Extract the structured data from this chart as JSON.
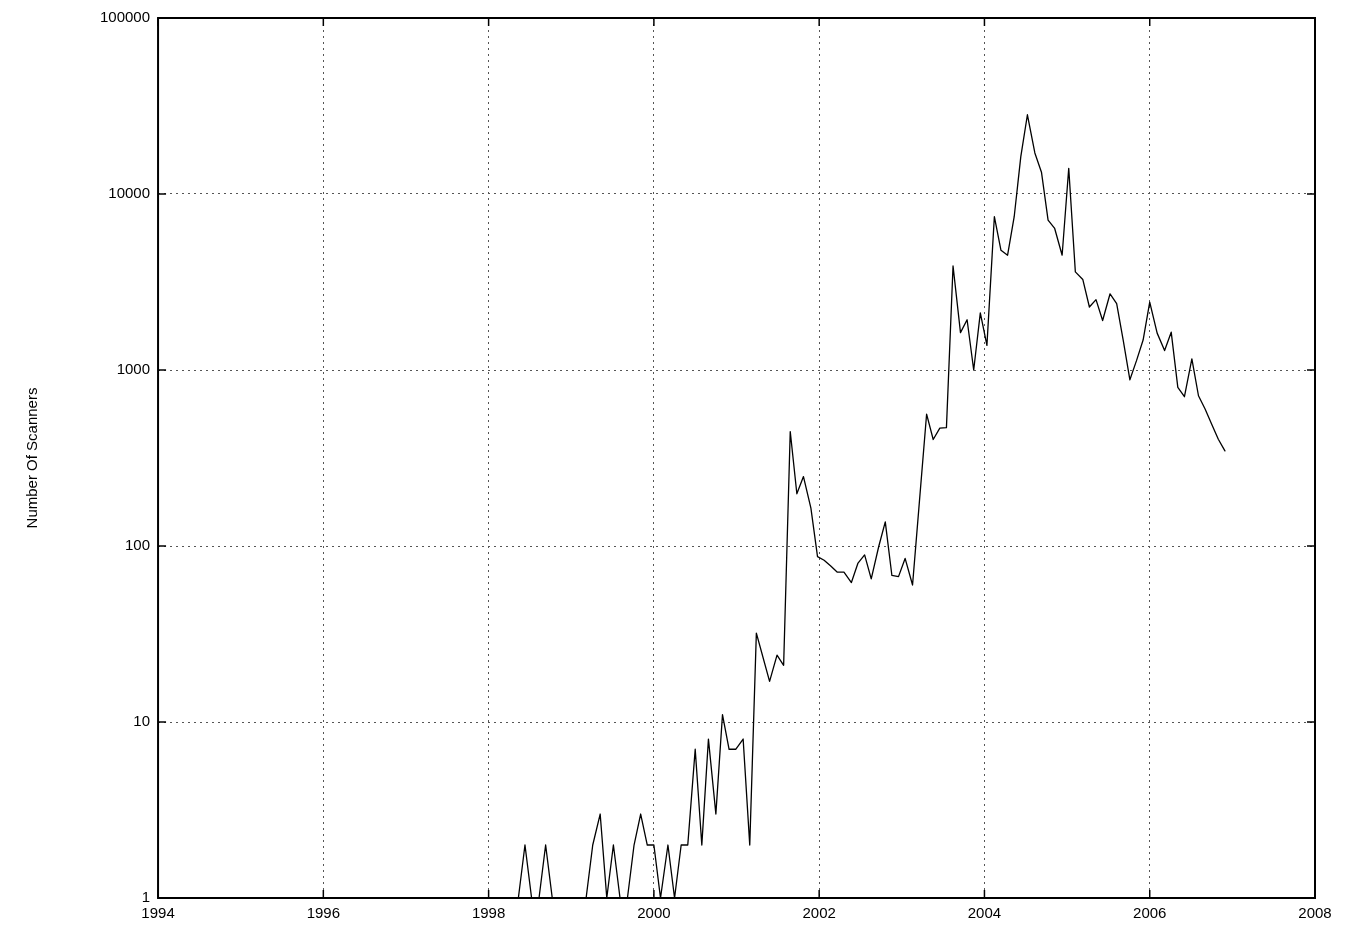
{
  "chart_data": {
    "type": "line",
    "ylabel": "Number Of Scanners",
    "log": "y",
    "grid": true,
    "legend": false,
    "marker": "none",
    "line_style": "solid",
    "xlim": [
      1994,
      2008
    ],
    "xticks": [
      1994,
      1996,
      1998,
      2000,
      2002,
      2004,
      2006,
      2008
    ],
    "ylim": [
      1,
      100000
    ],
    "yticks": [
      1,
      10,
      100,
      1000,
      10000,
      100000
    ],
    "series": [
      {
        "color": "#000000",
        "x": [
          1998.36,
          1998.44,
          1998.52,
          1998.61,
          1998.69,
          1998.77,
          1999.18,
          1999.26,
          1999.35,
          1999.43,
          1999.51,
          1999.59,
          1999.68,
          1999.76,
          1999.84,
          1999.92,
          2000.0,
          2000.08,
          2000.17,
          2000.25,
          2000.33,
          2000.41,
          2000.5,
          2000.58,
          2000.66,
          2000.75,
          2000.83,
          2000.91,
          2000.99,
          2001.08,
          2001.16,
          2001.24,
          2001.4,
          2001.49,
          2001.57,
          2001.65,
          2001.73,
          2001.81,
          2001.9,
          2001.98,
          2002.06,
          2002.14,
          2002.22,
          2002.3,
          2002.39,
          2002.47,
          2002.55,
          2002.63,
          2002.72,
          2002.8,
          2002.88,
          2002.96,
          2003.04,
          2003.13,
          2003.3,
          2003.38,
          2003.46,
          2003.54,
          2003.62,
          2003.71,
          2003.79,
          2003.87,
          2003.95,
          2004.03,
          2004.12,
          2004.2,
          2004.28,
          2004.36,
          2004.44,
          2004.52,
          2004.61,
          2004.69,
          2004.77,
          2004.85,
          2004.94,
          2005.02,
          2005.1,
          2005.19,
          2005.27,
          2005.35,
          2005.43,
          2005.52,
          2005.6,
          2005.68,
          2005.76,
          2005.84,
          2005.92,
          2006.0,
          2006.09,
          2006.18,
          2006.26,
          2006.34,
          2006.42,
          2006.51,
          2006.59,
          2006.67,
          2006.75,
          2006.83,
          2006.91
        ],
        "values": [
          1,
          2,
          1,
          1,
          2,
          1,
          1,
          2,
          3,
          1,
          2,
          1,
          1,
          2,
          3,
          2,
          2,
          1,
          2,
          1,
          2,
          2,
          7,
          2,
          8,
          3,
          11,
          7,
          7,
          8,
          2,
          32,
          17,
          24,
          21,
          447,
          198,
          248,
          164,
          87,
          83,
          77,
          71,
          71,
          62,
          80,
          89,
          65,
          99,
          137,
          68,
          67,
          85,
          60,
          561,
          403,
          467,
          470,
          3900,
          1630,
          1930,
          1000,
          2110,
          1380,
          7430,
          4790,
          4490,
          7430,
          16300,
          28200,
          17100,
          13300,
          7110,
          6370,
          4490,
          14000,
          3610,
          3270,
          2280,
          2510,
          1910,
          2710,
          2380,
          1470,
          880,
          1130,
          1480,
          2430,
          1620,
          1290,
          1640,
          796,
          705,
          1155,
          714,
          600,
          492,
          404,
          347
        ]
      }
    ]
  }
}
